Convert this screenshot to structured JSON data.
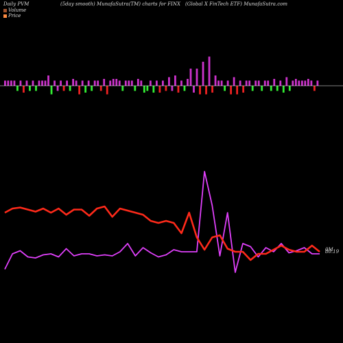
{
  "header": {
    "left": "Daily PVM",
    "center": "(5day smooth) MunafaSutra(TM) charts for FINX",
    "right": "(Global X  FinTech ETF) MunafaSutra.com"
  },
  "legend": [
    {
      "label": "Volume",
      "color": "#a0522d"
    },
    {
      "label": "Price",
      "color": "#ff8c42"
    }
  ],
  "chart_data": {
    "type": "line",
    "bars": {
      "name": "Volume",
      "baseline_color": "#ffffff",
      "values": [
        0.3,
        0.3,
        0.3,
        0.3,
        -0.3,
        0.3,
        -0.4,
        0.3,
        -0.3,
        0.3,
        -0.3,
        0.3,
        0.3,
        0.3,
        0.6,
        -0.5,
        0.3,
        -0.3,
        0.3,
        -0.3,
        0.3,
        -0.3,
        0.4,
        0.3,
        -0.5,
        0.3,
        -0.4,
        0.3,
        -0.3,
        0.3,
        0.3,
        -0.3,
        0.4,
        -0.5,
        0.3,
        0.4,
        0.4,
        0.3,
        -0.3,
        0.3,
        0.3,
        0.3,
        -0.3,
        0.4,
        0.3,
        -0.4,
        -0.3,
        0.3,
        -0.4,
        0.3,
        -0.4,
        0.3,
        -0.3,
        0.5,
        -0.3,
        0.6,
        -0.4,
        0.3,
        -0.3,
        0.4,
        1.0,
        -0.4,
        1.0,
        -0.5,
        1.4,
        -0.5,
        1.7,
        -0.4,
        0.6,
        0.3,
        0.3,
        -0.3,
        0.3,
        -0.5,
        0.5,
        -0.5,
        0.3,
        -0.4,
        0.3,
        0.3,
        -0.3,
        0.3,
        0.3,
        -0.3,
        0.3,
        0.3,
        -0.3,
        0.4,
        -0.3,
        0.3,
        -0.4,
        0.5,
        -0.3,
        0.3,
        0.4,
        0.3,
        0.3,
        0.3,
        0.4,
        0.3,
        -0.3,
        0.3
      ],
      "colors": [
        "m",
        "m",
        "m",
        "m",
        "g",
        "m",
        "r",
        "m",
        "g",
        "m",
        "g",
        "m",
        "m",
        "m",
        "m",
        "g",
        "m",
        "m",
        "m",
        "r",
        "m",
        "g",
        "m",
        "m",
        "r",
        "m",
        "g",
        "m",
        "g",
        "m",
        "m",
        "r",
        "m",
        "r",
        "m",
        "m",
        "m",
        "m",
        "g",
        "m",
        "m",
        "m",
        "g",
        "m",
        "m",
        "g",
        "g",
        "m",
        "g",
        "m",
        "r",
        "m",
        "r",
        "m",
        "m",
        "m",
        "r",
        "m",
        "g",
        "m",
        "m",
        "m",
        "m",
        "r",
        "m",
        "r",
        "m",
        "r",
        "m",
        "m",
        "m",
        "g",
        "m",
        "r",
        "m",
        "r",
        "m",
        "r",
        "m",
        "m",
        "g",
        "m",
        "m",
        "g",
        "m",
        "m",
        "g",
        "m",
        "g",
        "m",
        "g",
        "m",
        "g",
        "m",
        "m",
        "m",
        "m",
        "m",
        "m",
        "m",
        "r",
        "m"
      ]
    },
    "series": [
      {
        "name": "Volume",
        "color": "#e040fb",
        "values": [
          0.05,
          0.2,
          0.23,
          0.17,
          0.16,
          0.19,
          0.2,
          0.17,
          0.25,
          0.18,
          0.2,
          0.2,
          0.18,
          0.19,
          0.18,
          0.22,
          0.3,
          0.18,
          0.26,
          0.21,
          0.17,
          0.19,
          0.24,
          0.22,
          0.22,
          0.22,
          1.0,
          0.67,
          0.18,
          0.6,
          0.02,
          0.3,
          0.27,
          0.17,
          0.26,
          0.22,
          0.3,
          0.21,
          0.23,
          0.26,
          0.2,
          0.2
        ]
      },
      {
        "name": "Price",
        "color": "#ff2a1a",
        "values": [
          0.6,
          0.64,
          0.65,
          0.63,
          0.61,
          0.64,
          0.6,
          0.64,
          0.58,
          0.63,
          0.63,
          0.57,
          0.64,
          0.66,
          0.56,
          0.64,
          0.62,
          0.6,
          0.58,
          0.52,
          0.5,
          0.52,
          0.5,
          0.4,
          0.6,
          0.36,
          0.24,
          0.36,
          0.38,
          0.25,
          0.22,
          0.22,
          0.14,
          0.2,
          0.2,
          0.24,
          0.28,
          0.24,
          0.22,
          0.22,
          0.28,
          0.22
        ]
      }
    ],
    "labels": {
      "volume": "0M",
      "price": "80.19"
    }
  }
}
